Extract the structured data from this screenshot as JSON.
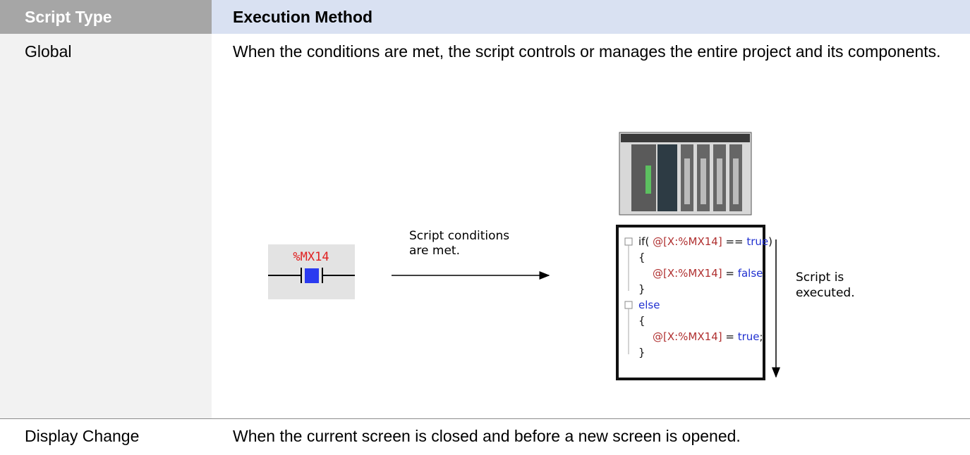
{
  "table": {
    "header": [
      "Script Type",
      "Execution Method"
    ],
    "rows": [
      [
        "Global",
        "When the conditions are met, the script controls or manages the entire project and its components."
      ],
      [
        "Display Change",
        "When the current screen is closed and before a new screen is opened."
      ]
    ]
  },
  "diagram": {
    "contact_label": "%MX14",
    "condition_label": [
      "Script conditions",
      "are met."
    ],
    "execution_label": [
      "Script is",
      "executed."
    ],
    "code": [
      [
        "if( ",
        "@[X:%MX14]",
        " == ",
        "true",
        ")"
      ],
      [
        "{"
      ],
      [
        "@[X:%MX14]",
        " = ",
        "false",
        ";"
      ],
      [
        "}"
      ],
      [
        "else"
      ],
      [
        "{"
      ],
      [
        "@[X:%MX14]",
        " = ",
        "true",
        ";"
      ],
      [
        "}"
      ]
    ]
  }
}
